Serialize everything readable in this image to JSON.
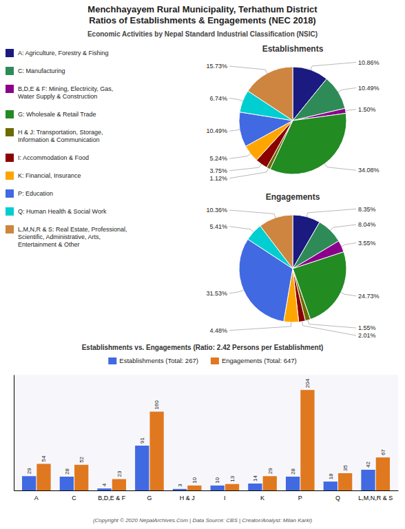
{
  "title": "Menchhayayem Rural Municipality, Terhathum District\nRatios of Establishments & Engagements (NEC 2018)",
  "subtitle": "Economic Activities by Nepal Standard Industrial Classification (NSIC)",
  "footer": "(Copyright © 2020 NepalArchives.Com | Data Source: CBS | Creator/Analyst: Milan Karki)",
  "chart_data": [
    {
      "type": "pie",
      "title": "Establishments",
      "categories": [
        "A: Agriculture, Forestry & Fishing",
        "C: Manufacturing",
        "B,D,E & F: Mining, Electricity, Gas,\nWater Supply & Construction",
        "G: Wholesale & Retail Trade",
        "H & J: Transportation, Storage,\nInformation & Communication",
        "I: Accommodation & Food",
        "K: Financial, Insurance",
        "P: Education",
        "Q: Human Health & Social Work",
        "L,M,N,R & S: Real Estate, Professional,\nScientific, Administrative, Arts,\nEntertainment & Other"
      ],
      "values": [
        10.86,
        10.49,
        1.5,
        34.08,
        1.12,
        3.75,
        5.24,
        10.49,
        6.74,
        15.73
      ],
      "value_labels": [
        "10.86%",
        "10.49%",
        "1.50%",
        "34.08%",
        "1.12%",
        "3.75%",
        "5.24%",
        "10.49%",
        "6.74%",
        "15.73%"
      ],
      "colors": [
        "#1a1a80",
        "#2e8b57",
        "#8b008b",
        "#228b22",
        "#6b6b00",
        "#8b0000",
        "#ffa500",
        "#4169e1",
        "#00ced1",
        "#cd853f"
      ],
      "data_labels": true,
      "legend": "left"
    },
    {
      "type": "pie",
      "title": "Engagements",
      "categories": [
        "A: Agriculture, Forestry & Fishing",
        "C: Manufacturing",
        "B,D,E & F: Mining, Electricity, Gas,\nWater Supply & Construction",
        "G: Wholesale & Retail Trade",
        "H & J: Transportation, Storage,\nInformation & Communication",
        "I: Accommodation & Food",
        "K: Financial, Insurance",
        "P: Education",
        "Q: Human Health & Social Work",
        "L,M,N,R & S: Real Estate, Professional,\nScientific, Administrative, Arts,\nEntertainment & Other"
      ],
      "values": [
        8.35,
        8.04,
        3.55,
        24.73,
        1.55,
        2.01,
        4.48,
        31.53,
        5.41,
        10.36
      ],
      "value_labels": [
        "8.35%",
        "8.04%",
        "3.55%",
        "24.73%",
        "1.55%",
        "2.01%",
        "4.48%",
        "31.53%",
        "5.41%",
        "10.36%"
      ],
      "colors": [
        "#1a1a80",
        "#2e8b57",
        "#8b008b",
        "#228b22",
        "#6b6b00",
        "#8b0000",
        "#ffa500",
        "#4169e1",
        "#00ced1",
        "#cd853f"
      ],
      "data_labels": true
    },
    {
      "type": "bar",
      "title": "Establishments vs. Engagements (Ratio: 2.42 Persons per Establishment)",
      "categories": [
        "A",
        "C",
        "B,D,E & F",
        "G",
        "H & J",
        "I",
        "K",
        "P",
        "Q",
        "L,M,N,R & S"
      ],
      "series": [
        {
          "name": "Establishments (Total: 267)",
          "color": "#4169e1",
          "values": [
            29,
            28,
            4,
            91,
            3,
            10,
            14,
            28,
            18,
            42
          ]
        },
        {
          "name": "Engagements (Total: 647)",
          "color": "#e07820",
          "values": [
            54,
            52,
            23,
            160,
            10,
            13,
            29,
            204,
            35,
            67
          ]
        }
      ],
      "ylim": [
        0,
        235
      ],
      "yticks": [],
      "tick_labels": "x",
      "data_labels": true,
      "legend": "top",
      "grid": false
    }
  ]
}
